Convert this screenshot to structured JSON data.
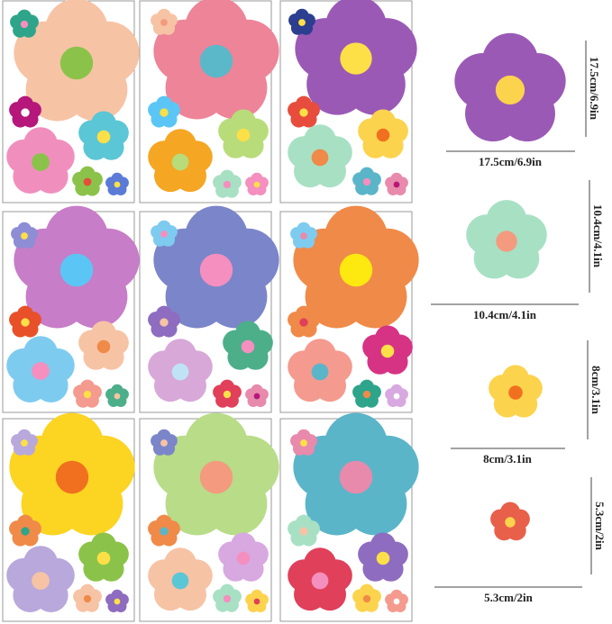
{
  "dimensions": [
    {
      "width": "17.5cm/6.9in",
      "height": "17.5cm/6.9in"
    },
    {
      "width": "10.4cm/4.1in",
      "height": "10.4cm/4.1in"
    },
    {
      "width": "8cm/3.1in",
      "height": "8cm/3.1in"
    },
    {
      "width": "5.3cm/2in",
      "height": "5.3cm/2in"
    }
  ]
}
